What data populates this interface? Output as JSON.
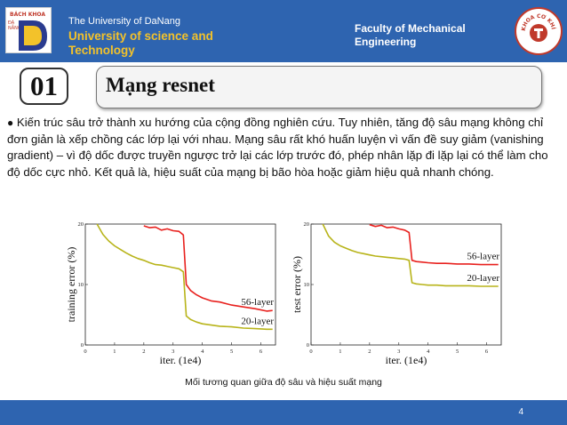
{
  "header": {
    "logo_left_text": "BÁCH KHOA",
    "logo_left_vertical": "ĐÀ NẴNG",
    "university_small": "The University of DaNang",
    "university_big": "University of science and Technology",
    "faculty": "Faculty of Mechanical Engineering",
    "logo_right_text": "KHOA CƠ KHÍ"
  },
  "section": {
    "number": "01",
    "title": "Mạng resnet"
  },
  "body": {
    "bullet": "●",
    "paragraph": "Kiến trúc sâu trở thành xu hướng của cộng đồng nghiên cứu. Tuy nhiên, tăng độ sâu mạng không chỉ đơn giản là xếp chồng các lớp lại với nhau. Mạng sâu rất khó huấn luyện vì vấn đề suy giảm (vanishing gradient) – vì độ dốc được truyền ngược trở lại các lớp trước đó, phép nhân lặp đi lặp lại có thể làm cho độ dốc cực nhỏ. Kết quả là, hiệu suất của mạng bị bão hòa hoặc giảm hiệu quả nhanh chóng."
  },
  "chart_data": [
    {
      "type": "line",
      "xlabel": "iter. (1e4)",
      "ylabel": "training error (%)",
      "xlim": [
        0,
        6.5
      ],
      "ylim": [
        0,
        20
      ],
      "xticks": [
        "0",
        "1",
        "2",
        "3",
        "4",
        "5",
        "6"
      ],
      "yticks": [
        "0",
        "10",
        "20"
      ],
      "series": [
        {
          "name": "56-layer",
          "color": "#e8211e",
          "x": [
            2.0,
            2.2,
            2.4,
            2.6,
            2.8,
            3.0,
            3.2,
            3.35,
            3.45,
            3.6,
            3.8,
            4.0,
            4.3,
            4.6,
            5.0,
            5.4,
            5.8,
            6.2,
            6.4
          ],
          "y": [
            19.7,
            19.4,
            19.5,
            19.0,
            19.2,
            18.9,
            18.8,
            18.2,
            10.0,
            9.0,
            8.3,
            7.8,
            7.3,
            7.1,
            6.6,
            6.3,
            6.0,
            5.6,
            5.7
          ]
        },
        {
          "name": "20-layer",
          "color": "#b8b41a",
          "x": [
            0.4,
            0.6,
            0.8,
            1.0,
            1.2,
            1.4,
            1.6,
            1.8,
            2.0,
            2.2,
            2.4,
            2.6,
            2.8,
            3.0,
            3.2,
            3.35,
            3.45,
            3.6,
            3.8,
            4.0,
            4.3,
            4.6,
            5.0,
            5.4,
            5.8,
            6.2,
            6.4
          ],
          "y": [
            20.0,
            18.3,
            17.2,
            16.4,
            15.8,
            15.2,
            14.7,
            14.3,
            14.0,
            13.6,
            13.3,
            13.2,
            13.0,
            12.8,
            12.6,
            12.1,
            4.8,
            4.2,
            3.8,
            3.5,
            3.3,
            3.1,
            3.0,
            2.8,
            2.7,
            2.6,
            2.6
          ]
        }
      ]
    },
    {
      "type": "line",
      "xlabel": "iter. (1e4)",
      "ylabel": "test error (%)",
      "xlim": [
        0,
        6.5
      ],
      "ylim": [
        0,
        20
      ],
      "xticks": [
        "0",
        "1",
        "2",
        "3",
        "4",
        "5",
        "6"
      ],
      "yticks": [
        "0",
        "10",
        "20"
      ],
      "series": [
        {
          "name": "56-layer",
          "color": "#e8211e",
          "x": [
            2.0,
            2.2,
            2.4,
            2.6,
            2.8,
            3.0,
            3.2,
            3.35,
            3.45,
            3.6,
            3.8,
            4.0,
            4.3,
            4.6,
            5.0,
            5.4,
            5.8,
            6.2,
            6.4
          ],
          "y": [
            19.9,
            19.6,
            19.8,
            19.4,
            19.5,
            19.2,
            19.0,
            18.6,
            14.0,
            13.8,
            13.7,
            13.6,
            13.5,
            13.5,
            13.4,
            13.4,
            13.3,
            13.3,
            13.3
          ]
        },
        {
          "name": "20-layer",
          "color": "#b8b41a",
          "x": [
            0.4,
            0.6,
            0.8,
            1.0,
            1.2,
            1.4,
            1.6,
            1.8,
            2.0,
            2.2,
            2.4,
            2.6,
            2.8,
            3.0,
            3.2,
            3.35,
            3.45,
            3.6,
            3.8,
            4.0,
            4.3,
            4.6,
            5.0,
            5.4,
            5.8,
            6.2,
            6.4
          ],
          "y": [
            20.0,
            18.0,
            17.0,
            16.4,
            16.0,
            15.6,
            15.3,
            15.1,
            14.9,
            14.7,
            14.6,
            14.5,
            14.4,
            14.3,
            14.2,
            14.0,
            10.3,
            10.1,
            10.0,
            9.9,
            9.9,
            9.8,
            9.8,
            9.8,
            9.7,
            9.7,
            9.7
          ]
        }
      ]
    }
  ],
  "figure": {
    "caption": "Mối tương quan giữa độ sâu và hiệu suất mạng"
  },
  "footer": {
    "page_number": "4"
  }
}
